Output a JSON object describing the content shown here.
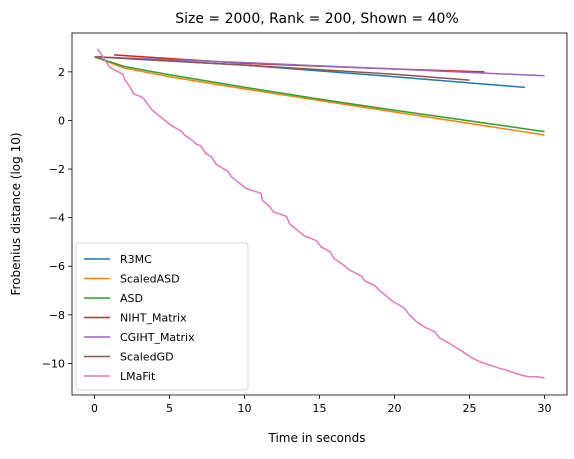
{
  "chart_data": {
    "type": "line",
    "title": "Size = 2000, Rank = 200, Shown = 40%",
    "xlabel": "Time in seconds",
    "ylabel": "Frobenius distance (log 10)",
    "xlim": [
      -1.5,
      31.5
    ],
    "ylim": [
      -11.3,
      3.6
    ],
    "xticks": [
      0,
      5,
      10,
      15,
      20,
      25,
      30
    ],
    "yticks": [
      2,
      0,
      -2,
      -4,
      -6,
      -8,
      -10
    ],
    "xtick_labels": [
      "0",
      "5",
      "10",
      "15",
      "20",
      "25",
      "30"
    ],
    "ytick_labels": [
      "2",
      "0",
      "−2",
      "−4",
      "−6",
      "−8",
      "−10"
    ],
    "legend_position": "lower-left",
    "series": [
      {
        "name": "R3MC",
        "color": "#1f77b4",
        "x": [
          0,
          10,
          20,
          28.7
        ],
        "y": [
          2.62,
          2.28,
          1.8,
          1.36
        ]
      },
      {
        "name": "ScaledASD",
        "color": "#ff7f0e",
        "x": [
          0,
          2,
          5,
          10,
          15,
          20,
          25,
          30
        ],
        "y": [
          2.62,
          2.15,
          1.8,
          1.3,
          0.82,
          0.35,
          -0.12,
          -0.6
        ]
      },
      {
        "name": "ASD",
        "color": "#2ca02c",
        "x": [
          0,
          2,
          5,
          10,
          15,
          20,
          25,
          30
        ],
        "y": [
          2.62,
          2.22,
          1.88,
          1.37,
          0.88,
          0.42,
          -0.02,
          -0.46
        ]
      },
      {
        "name": "NIHT_Matrix",
        "color": "#d62728",
        "x": [
          1.3,
          10,
          20,
          26
        ],
        "y": [
          2.7,
          2.35,
          2.12,
          2.0
        ]
      },
      {
        "name": "CGIHT_Matrix",
        "color": "#9467bd",
        "x": [
          0,
          10,
          20,
          30
        ],
        "y": [
          2.62,
          2.38,
          2.12,
          1.84
        ]
      },
      {
        "name": "ScaledGD",
        "color": "#8c564b",
        "x": [
          0,
          10,
          20,
          25
        ],
        "y": [
          2.62,
          2.28,
          1.9,
          1.66
        ]
      },
      {
        "name": "LMaFit",
        "color": "#e377c2",
        "x": [
          0.2,
          0.9,
          1.0,
          1.9,
          2.0,
          2.4,
          2.6,
          3.2,
          3.4,
          3.8,
          4.1,
          4.9,
          5.1,
          5.8,
          6.0,
          6.6,
          6.7,
          7.1,
          7.4,
          7.8,
          8.1,
          8.9,
          9.1,
          9.7,
          10.1,
          11.1,
          11.2,
          11.7,
          11.9,
          12.8,
          13.0,
          13.5,
          14.0,
          14.8,
          15.1,
          15.7,
          16.0,
          16.6,
          17.0,
          17.8,
          18.0,
          18.7,
          19.0,
          19.5,
          19.9,
          20.6,
          21.0,
          21.5,
          22.0,
          22.7,
          23.0,
          23.6,
          24.1,
          24.5,
          25.1,
          25.6,
          26.0,
          26.5,
          27.0,
          27.6,
          28.0,
          28.6,
          29.0,
          29.5,
          30.0
        ],
        "y": [
          2.95,
          2.3,
          2.2,
          1.9,
          1.7,
          1.35,
          1.1,
          0.95,
          0.8,
          0.45,
          0.3,
          -0.1,
          -0.2,
          -0.45,
          -0.6,
          -0.85,
          -0.95,
          -1.05,
          -1.35,
          -1.5,
          -1.8,
          -2.1,
          -2.3,
          -2.6,
          -2.8,
          -3.0,
          -3.3,
          -3.55,
          -3.75,
          -3.95,
          -4.25,
          -4.5,
          -4.75,
          -4.95,
          -5.2,
          -5.4,
          -5.7,
          -5.95,
          -6.15,
          -6.4,
          -6.6,
          -6.8,
          -7.0,
          -7.25,
          -7.45,
          -7.7,
          -8.0,
          -8.3,
          -8.5,
          -8.7,
          -8.95,
          -9.15,
          -9.35,
          -9.5,
          -9.75,
          -9.9,
          -10.0,
          -10.1,
          -10.2,
          -10.3,
          -10.4,
          -10.5,
          -10.55,
          -10.55,
          -10.6
        ]
      }
    ]
  }
}
